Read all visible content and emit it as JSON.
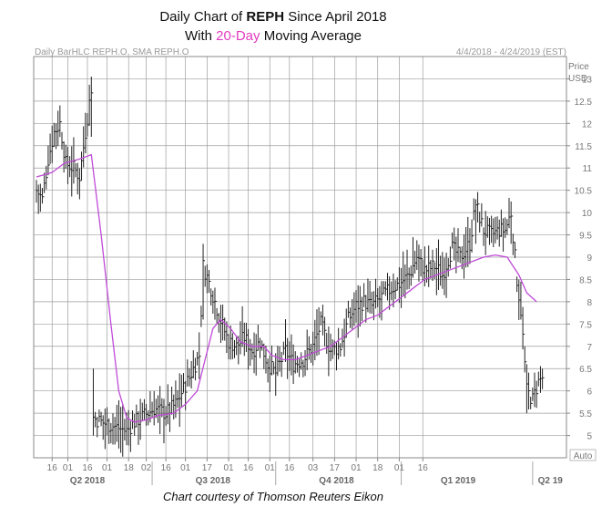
{
  "title": {
    "line1_pre": "Daily Chart of ",
    "line1_bold": "REPH",
    "line1_post": " Since April 2018",
    "line2_pre": "With ",
    "line2_hl": "20-Day",
    "line2_post": " Moving Average"
  },
  "source": "Chart courtesy of Thomson Reuters Eikon",
  "colors": {
    "highlight": "#e23bbf",
    "sma": "#c04ad8",
    "bars": "#222222",
    "grid": "#9e9e9e"
  },
  "chart_data": {
    "type": "line",
    "header_left": "Daily BarHLC REPH.O, SMA REPH.O",
    "header_right": "4/4/2018 - 4/24/2019 (EST)",
    "price_label": "Price",
    "currency_label": "USD",
    "auto_label": "Auto",
    "ylim": [
      4.5,
      13.5
    ],
    "y_ticks": [
      "5",
      "5.5",
      "6",
      "6.5",
      "7",
      "7.5",
      "8",
      "8.5",
      "9",
      "9.5",
      "10",
      "10.5",
      "11",
      "11.5",
      "12",
      "12.5",
      "13"
    ],
    "x_ticks": [
      "16",
      "01",
      "16",
      "01",
      "18",
      "02",
      "16",
      "01",
      "17",
      "01",
      "16",
      "01",
      "16",
      "03",
      "17",
      "01",
      "18",
      "01",
      "16"
    ],
    "x_tick_index": [
      8,
      16,
      26,
      36,
      47,
      56,
      66,
      76,
      87,
      98,
      108,
      119,
      129,
      141,
      152,
      163,
      174,
      185,
      197
    ],
    "quarters": [
      {
        "label": "Q2 2018",
        "center": 26
      },
      {
        "label": "Q3 2018",
        "center": 90
      },
      {
        "label": "Q4 2018",
        "center": 153
      },
      {
        "label": "Q1 2019",
        "center": 215
      },
      {
        "label": "Q2 19",
        "center": 262
      }
    ],
    "quarter_separators": [
      59,
      122,
      186,
      253
    ],
    "x_range": [
      0,
      267
    ],
    "price_anchors": [
      [
        0,
        10.5
      ],
      [
        3,
        10.3
      ],
      [
        6,
        11.2
      ],
      [
        9,
        11.8
      ],
      [
        12,
        12.0
      ],
      [
        15,
        11.1
      ],
      [
        19,
        11.0
      ],
      [
        22,
        10.8
      ],
      [
        25,
        11.8
      ],
      [
        28,
        12.8
      ],
      [
        29,
        5.4
      ],
      [
        33,
        5.3
      ],
      [
        40,
        5.2
      ],
      [
        46,
        5.1
      ],
      [
        50,
        5.3
      ],
      [
        55,
        5.45
      ],
      [
        60,
        5.6
      ],
      [
        66,
        5.5
      ],
      [
        71,
        5.7
      ],
      [
        78,
        6.3
      ],
      [
        83,
        6.8
      ],
      [
        85,
        8.8
      ],
      [
        89,
        8.3
      ],
      [
        93,
        7.7
      ],
      [
        98,
        7.1
      ],
      [
        102,
        7.0
      ],
      [
        106,
        7.2
      ],
      [
        110,
        6.9
      ],
      [
        114,
        7.1
      ],
      [
        118,
        6.6
      ],
      [
        122,
        6.4
      ],
      [
        127,
        6.9
      ],
      [
        131,
        6.6
      ],
      [
        136,
        6.7
      ],
      [
        141,
        7.0
      ],
      [
        145,
        7.5
      ],
      [
        150,
        6.9
      ],
      [
        155,
        7.0
      ],
      [
        159,
        7.6
      ],
      [
        163,
        7.9
      ],
      [
        167,
        8.0
      ],
      [
        171,
        7.9
      ],
      [
        176,
        8.1
      ],
      [
        181,
        8.3
      ],
      [
        185,
        8.4
      ],
      [
        190,
        8.6
      ],
      [
        194,
        9.0
      ],
      [
        198,
        8.7
      ],
      [
        203,
        8.8
      ],
      [
        207,
        8.6
      ],
      [
        212,
        9.2
      ],
      [
        216,
        9.0
      ],
      [
        221,
        9.3
      ],
      [
        224,
        10.2
      ],
      [
        228,
        9.6
      ],
      [
        232,
        9.5
      ],
      [
        236,
        9.6
      ],
      [
        239,
        9.6
      ],
      [
        242,
        10.0
      ],
      [
        245,
        8.5
      ],
      [
        247,
        7.8
      ],
      [
        250,
        6.0
      ],
      [
        253,
        5.8
      ],
      [
        256,
        6.2
      ],
      [
        258,
        6.3
      ]
    ],
    "sma_anchors": [
      [
        0,
        10.8
      ],
      [
        8,
        10.9
      ],
      [
        14,
        11.1
      ],
      [
        22,
        11.2
      ],
      [
        28,
        11.3
      ],
      [
        33,
        9.5
      ],
      [
        38,
        7.5
      ],
      [
        42,
        6.0
      ],
      [
        46,
        5.4
      ],
      [
        50,
        5.3
      ],
      [
        56,
        5.35
      ],
      [
        62,
        5.45
      ],
      [
        70,
        5.5
      ],
      [
        76,
        5.7
      ],
      [
        82,
        6.0
      ],
      [
        86,
        6.7
      ],
      [
        90,
        7.4
      ],
      [
        94,
        7.6
      ],
      [
        99,
        7.4
      ],
      [
        104,
        7.1
      ],
      [
        110,
        7.0
      ],
      [
        116,
        7.0
      ],
      [
        120,
        6.8
      ],
      [
        126,
        6.7
      ],
      [
        132,
        6.7
      ],
      [
        138,
        6.8
      ],
      [
        144,
        6.9
      ],
      [
        150,
        7.0
      ],
      [
        156,
        7.2
      ],
      [
        162,
        7.4
      ],
      [
        168,
        7.6
      ],
      [
        174,
        7.7
      ],
      [
        180,
        7.9
      ],
      [
        186,
        8.1
      ],
      [
        192,
        8.3
      ],
      [
        198,
        8.5
      ],
      [
        204,
        8.6
      ],
      [
        210,
        8.7
      ],
      [
        216,
        8.8
      ],
      [
        222,
        8.9
      ],
      [
        228,
        9.0
      ],
      [
        234,
        9.05
      ],
      [
        240,
        9.0
      ],
      [
        246,
        8.6
      ],
      [
        250,
        8.2
      ],
      [
        255,
        8.0
      ]
    ]
  }
}
